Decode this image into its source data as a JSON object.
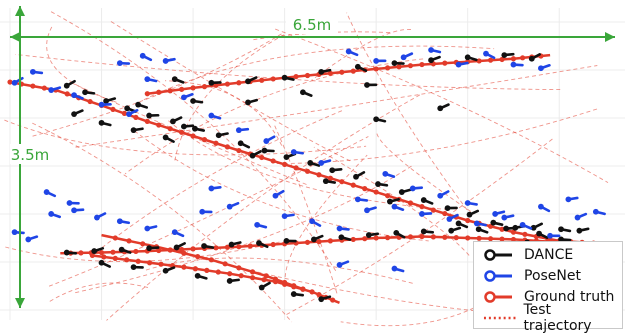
{
  "chart_data": {
    "type": "scatter",
    "title": "",
    "xlabel": "",
    "ylabel": "",
    "grid": true,
    "legend_position": "bottom-right",
    "dimension_labels": {
      "width": "6.5m",
      "height": "3.5m"
    },
    "xlim": [
      0,
      6.5
    ],
    "ylim": [
      0,
      3.5
    ],
    "colors": {
      "dance": "#111111",
      "posenet": "#1f45e6",
      "ground_truth": "#e23b2a",
      "test_trajectory": "#e23b2a",
      "dimension": "#3aa63a"
    },
    "series": [
      {
        "name": "DANCE",
        "type": "pose",
        "points": [
          [
            0.62,
            3.01
          ],
          [
            0.82,
            2.92
          ],
          [
            1.05,
            2.8
          ],
          [
            1.28,
            2.7
          ],
          [
            1.52,
            2.6
          ],
          [
            1.78,
            2.52
          ],
          [
            2.02,
            2.42
          ],
          [
            2.28,
            2.33
          ],
          [
            2.52,
            2.22
          ],
          [
            2.78,
            2.12
          ],
          [
            3.02,
            2.03
          ],
          [
            3.28,
            1.95
          ],
          [
            3.52,
            1.85
          ],
          [
            3.78,
            1.76
          ],
          [
            4.02,
            1.66
          ],
          [
            4.28,
            1.55
          ],
          [
            4.52,
            1.44
          ],
          [
            4.78,
            1.33
          ],
          [
            5.02,
            1.24
          ],
          [
            5.28,
            1.13
          ],
          [
            5.52,
            1.06
          ],
          [
            5.78,
            0.98
          ],
          [
            6.02,
            0.9
          ],
          [
            6.22,
            0.82
          ],
          [
            1.4,
            2.75
          ],
          [
            1.9,
            2.45
          ],
          [
            2.65,
            2.05
          ],
          [
            3.45,
            1.7
          ],
          [
            4.15,
            1.42
          ],
          [
            4.9,
            1.12
          ],
          [
            5.65,
            0.86
          ],
          [
            0.7,
            2.62
          ],
          [
            1.0,
            2.5
          ],
          [
            1.35,
            2.4
          ],
          [
            1.7,
            2.3
          ],
          [
            0.62,
            0.72
          ],
          [
            0.92,
            0.74
          ],
          [
            1.22,
            0.76
          ],
          [
            1.52,
            0.78
          ],
          [
            1.82,
            0.79
          ],
          [
            2.12,
            0.81
          ],
          [
            2.42,
            0.83
          ],
          [
            2.72,
            0.85
          ],
          [
            3.02,
            0.88
          ],
          [
            3.32,
            0.9
          ],
          [
            3.62,
            0.93
          ],
          [
            3.92,
            0.96
          ],
          [
            4.22,
            0.99
          ],
          [
            4.52,
            1.01
          ],
          [
            4.82,
            1.02
          ],
          [
            5.12,
            1.04
          ],
          [
            5.42,
            1.05
          ],
          [
            5.72,
            1.06
          ],
          [
            6.02,
            1.04
          ],
          [
            6.22,
            1.02
          ],
          [
            1.0,
            0.58
          ],
          [
            1.35,
            0.52
          ],
          [
            1.7,
            0.47
          ],
          [
            2.05,
            0.4
          ],
          [
            2.4,
            0.33
          ],
          [
            2.75,
            0.24
          ],
          [
            3.1,
            0.15
          ],
          [
            3.4,
            0.08
          ],
          [
            1.8,
            3.1
          ],
          [
            2.2,
            3.05
          ],
          [
            2.6,
            3.07
          ],
          [
            3.0,
            3.12
          ],
          [
            3.4,
            3.2
          ],
          [
            3.8,
            3.27
          ],
          [
            4.2,
            3.32
          ],
          [
            4.6,
            3.36
          ],
          [
            5.0,
            3.4
          ],
          [
            5.4,
            3.43
          ],
          [
            5.7,
            3.38
          ],
          [
            2.0,
            2.8
          ],
          [
            2.6,
            2.78
          ],
          [
            3.2,
            2.92
          ],
          [
            3.9,
            3.02
          ],
          [
            4.7,
            2.7
          ],
          [
            4.0,
            2.55
          ]
        ]
      },
      {
        "name": "PoseNet",
        "type": "pose",
        "points": [
          [
            0.05,
            3.05
          ],
          [
            0.25,
            3.2
          ],
          [
            0.45,
            2.95
          ],
          [
            0.7,
            2.88
          ],
          [
            1.0,
            2.75
          ],
          [
            1.3,
            2.62
          ],
          [
            1.5,
            3.1
          ],
          [
            1.7,
            3.35
          ],
          [
            1.45,
            3.42
          ],
          [
            1.2,
            3.32
          ],
          [
            1.9,
            2.85
          ],
          [
            2.2,
            2.6
          ],
          [
            2.5,
            2.4
          ],
          [
            2.8,
            2.25
          ],
          [
            3.1,
            2.1
          ],
          [
            3.4,
            1.95
          ],
          [
            3.7,
            3.48
          ],
          [
            4.0,
            3.35
          ],
          [
            4.3,
            3.4
          ],
          [
            4.6,
            3.5
          ],
          [
            4.9,
            3.3
          ],
          [
            5.2,
            3.45
          ],
          [
            5.5,
            3.3
          ],
          [
            5.8,
            3.25
          ],
          [
            4.1,
            1.8
          ],
          [
            4.4,
            1.6
          ],
          [
            4.7,
            1.5
          ],
          [
            5.0,
            1.4
          ],
          [
            5.3,
            1.25
          ],
          [
            5.6,
            1.1
          ],
          [
            5.9,
            0.95
          ],
          [
            6.2,
            1.2
          ],
          [
            6.4,
            1.28
          ],
          [
            6.1,
            1.45
          ],
          [
            5.8,
            1.35
          ],
          [
            0.05,
            1.0
          ],
          [
            0.2,
            0.9
          ],
          [
            0.45,
            1.25
          ],
          [
            0.7,
            1.3
          ],
          [
            0.95,
            1.2
          ],
          [
            1.2,
            1.15
          ],
          [
            1.5,
            1.05
          ],
          [
            1.8,
            1.0
          ],
          [
            2.1,
            1.28
          ],
          [
            2.4,
            1.35
          ],
          [
            2.7,
            1.1
          ],
          [
            3.0,
            1.22
          ],
          [
            3.3,
            1.15
          ],
          [
            3.6,
            1.05
          ],
          [
            3.9,
            1.3
          ],
          [
            4.2,
            1.35
          ],
          [
            4.5,
            1.25
          ],
          [
            4.8,
            1.18
          ],
          [
            5.1,
            1.12
          ],
          [
            5.4,
            1.2
          ],
          [
            0.4,
            1.55
          ],
          [
            0.65,
            1.4
          ],
          [
            3.6,
            0.55
          ],
          [
            4.2,
            0.5
          ],
          [
            2.2,
            1.6
          ],
          [
            2.9,
            1.5
          ],
          [
            3.8,
            1.45
          ]
        ]
      },
      {
        "name": "Ground truth",
        "type": "line",
        "points": [
          [
            0.0,
            3.06
          ],
          [
            0.5,
            2.95
          ],
          [
            1.0,
            2.74
          ],
          [
            1.5,
            2.52
          ],
          [
            2.0,
            2.32
          ],
          [
            2.5,
            2.12
          ],
          [
            3.0,
            1.93
          ],
          [
            3.5,
            1.74
          ],
          [
            4.0,
            1.55
          ],
          [
            4.5,
            1.35
          ],
          [
            5.0,
            1.16
          ],
          [
            5.5,
            1.0
          ],
          [
            6.0,
            0.88
          ],
          [
            6.5,
            0.84
          ],
          [
            6.0,
            0.86
          ],
          [
            5.5,
            0.9
          ],
          [
            5.0,
            0.92
          ],
          [
            4.5,
            0.94
          ],
          [
            4.0,
            0.92
          ],
          [
            3.5,
            0.88
          ],
          [
            3.0,
            0.84
          ],
          [
            2.5,
            0.8
          ],
          [
            2.0,
            0.77
          ],
          [
            1.5,
            0.74
          ],
          [
            1.0,
            0.72
          ],
          [
            0.55,
            0.71
          ],
          [
            0.9,
            0.68
          ],
          [
            1.4,
            0.6
          ],
          [
            1.9,
            0.52
          ],
          [
            2.4,
            0.43
          ],
          [
            2.9,
            0.32
          ],
          [
            3.3,
            0.18
          ],
          [
            3.6,
            0.03
          ],
          [
            3.2,
            0.22
          ],
          [
            2.8,
            0.4
          ],
          [
            2.2,
            0.62
          ],
          [
            1.6,
            0.8
          ],
          [
            1.0,
            0.96
          ],
          [
            1.5,
            2.9
          ],
          [
            2.0,
            2.98
          ],
          [
            2.5,
            3.05
          ],
          [
            3.0,
            3.12
          ],
          [
            3.5,
            3.18
          ],
          [
            4.0,
            3.24
          ],
          [
            4.5,
            3.3
          ],
          [
            5.0,
            3.34
          ],
          [
            5.5,
            3.38
          ],
          [
            5.9,
            3.43
          ]
        ]
      },
      {
        "name": "Test trajectory",
        "type": "dashed",
        "points": []
      }
    ]
  }
}
